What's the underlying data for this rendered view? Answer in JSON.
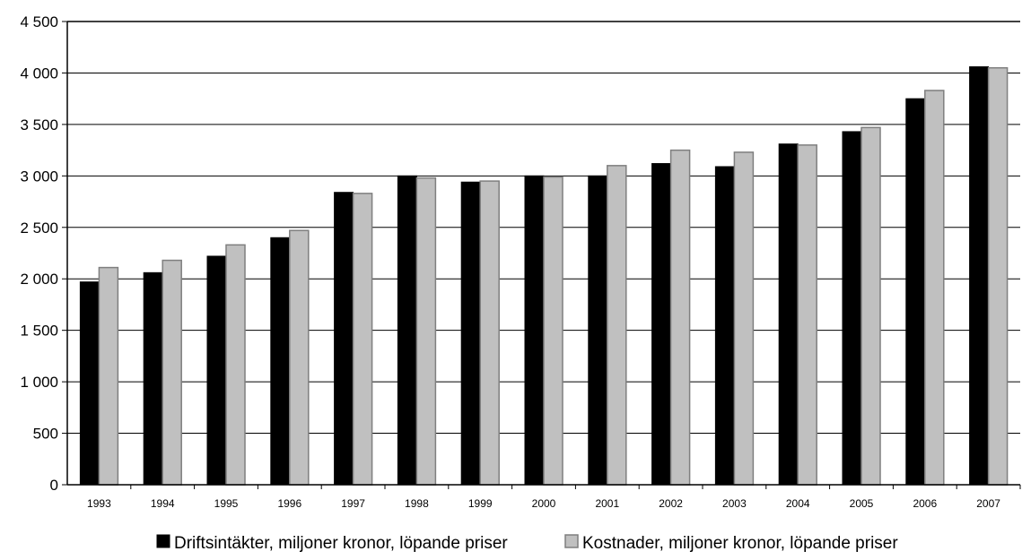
{
  "chart_data": {
    "type": "bar",
    "categories": [
      "1993",
      "1994",
      "1995",
      "1996",
      "1997",
      "1998",
      "1999",
      "2000",
      "2001",
      "2002",
      "2003",
      "2004",
      "2005",
      "2006",
      "2007"
    ],
    "series": [
      {
        "name": "Driftsintäkter, miljoner kronor, löpande priser",
        "color": "#000000",
        "values": [
          1970,
          2060,
          2220,
          2400,
          2840,
          3000,
          2940,
          3000,
          3000,
          3120,
          3090,
          3310,
          3430,
          3750,
          4060
        ]
      },
      {
        "name": "Kostnader, miljoner kronor, löpande priser",
        "color": "#c0c0c0",
        "values": [
          2110,
          2180,
          2330,
          2470,
          2830,
          2980,
          2950,
          2990,
          3100,
          3250,
          3230,
          3300,
          3470,
          3830,
          4050
        ]
      }
    ],
    "yticks": [
      "0",
      "500",
      "1 000",
      "1 500",
      "2 000",
      "2 500",
      "3 000",
      "3 500",
      "4 000",
      "4 500"
    ],
    "ylim": [
      0,
      4500
    ],
    "grid": true,
    "legend_position": "bottom",
    "title": "",
    "xlabel": "",
    "ylabel": ""
  }
}
